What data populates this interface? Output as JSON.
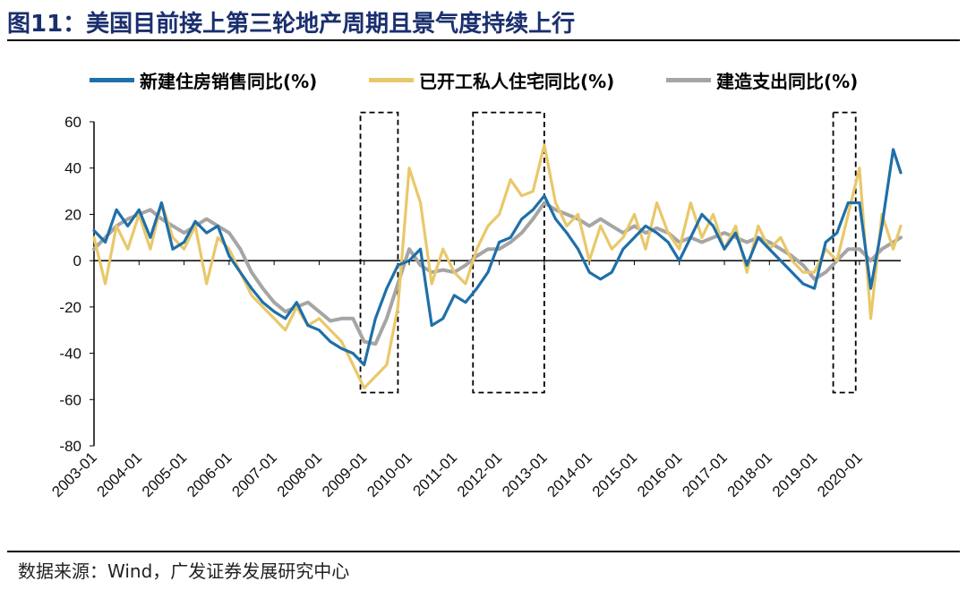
{
  "header": {
    "title": "图11：美国目前接上第三轮地产周期且景气度持续上行"
  },
  "footer": {
    "source": "数据来源：Wind，广发证券发展研究中心"
  },
  "colors": {
    "title": "#1a2f6e",
    "series1": "#1f6fa9",
    "series2": "#e9c86a",
    "series3": "#a5a5a5"
  },
  "chart_data": {
    "type": "line",
    "title": "",
    "xlabel": "",
    "ylabel": "",
    "ylim": [
      -80,
      60
    ],
    "yticks": [
      60,
      40,
      20,
      0,
      -20,
      -40,
      -60,
      -80
    ],
    "xticks": [
      "2003-01",
      "2004-01",
      "2005-01",
      "2006-01",
      "2007-01",
      "2008-01",
      "2009-01",
      "2010-01",
      "2011-01",
      "2012-01",
      "2013-01",
      "2014-01",
      "2015-01",
      "2016-01",
      "2017-01",
      "2018-01",
      "2019-01",
      "2020-01"
    ],
    "x_range": [
      "2003-01",
      "2020-12"
    ],
    "grid": false,
    "legend_position": "top",
    "highlight_boxes": [
      {
        "from": "2008-12",
        "to": "2009-10",
        "ymin": -57,
        "ymax": 64
      },
      {
        "from": "2011-06",
        "to": "2013-01",
        "ymin": -57,
        "ymax": 64
      },
      {
        "from": "2019-06",
        "to": "2019-12",
        "ymin": -57,
        "ymax": 64
      }
    ],
    "series": [
      {
        "name": "新建住房销售同比(%)",
        "color": "#1f6fa9",
        "points": [
          [
            "2003-01",
            13
          ],
          [
            "2003-04",
            8
          ],
          [
            "2003-07",
            22
          ],
          [
            "2003-10",
            15
          ],
          [
            "2004-01",
            22
          ],
          [
            "2004-04",
            10
          ],
          [
            "2004-07",
            25
          ],
          [
            "2004-10",
            5
          ],
          [
            "2005-01",
            8
          ],
          [
            "2005-04",
            17
          ],
          [
            "2005-07",
            12
          ],
          [
            "2005-10",
            15
          ],
          [
            "2006-01",
            2
          ],
          [
            "2006-04",
            -5
          ],
          [
            "2006-07",
            -12
          ],
          [
            "2006-10",
            -18
          ],
          [
            "2007-01",
            -22
          ],
          [
            "2007-04",
            -25
          ],
          [
            "2007-07",
            -18
          ],
          [
            "2007-10",
            -28
          ],
          [
            "2008-01",
            -30
          ],
          [
            "2008-04",
            -35
          ],
          [
            "2008-07",
            -38
          ],
          [
            "2008-10",
            -40
          ],
          [
            "2009-01",
            -45
          ],
          [
            "2009-04",
            -25
          ],
          [
            "2009-07",
            -12
          ],
          [
            "2009-10",
            -2
          ],
          [
            "2010-01",
            0
          ],
          [
            "2010-04",
            5
          ],
          [
            "2010-07",
            -28
          ],
          [
            "2010-10",
            -25
          ],
          [
            "2011-01",
            -15
          ],
          [
            "2011-04",
            -18
          ],
          [
            "2011-07",
            -12
          ],
          [
            "2011-10",
            -5
          ],
          [
            "2012-01",
            8
          ],
          [
            "2012-04",
            10
          ],
          [
            "2012-07",
            18
          ],
          [
            "2012-10",
            22
          ],
          [
            "2013-01",
            28
          ],
          [
            "2013-04",
            18
          ],
          [
            "2013-07",
            12
          ],
          [
            "2013-10",
            5
          ],
          [
            "2014-01",
            -5
          ],
          [
            "2014-04",
            -8
          ],
          [
            "2014-07",
            -5
          ],
          [
            "2014-10",
            5
          ],
          [
            "2015-01",
            10
          ],
          [
            "2015-04",
            15
          ],
          [
            "2015-07",
            12
          ],
          [
            "2015-10",
            8
          ],
          [
            "2016-01",
            0
          ],
          [
            "2016-04",
            10
          ],
          [
            "2016-07",
            20
          ],
          [
            "2016-10",
            15
          ],
          [
            "2017-01",
            5
          ],
          [
            "2017-04",
            12
          ],
          [
            "2017-07",
            -2
          ],
          [
            "2017-10",
            10
          ],
          [
            "2018-01",
            5
          ],
          [
            "2018-04",
            0
          ],
          [
            "2018-07",
            -5
          ],
          [
            "2018-10",
            -10
          ],
          [
            "2019-01",
            -12
          ],
          [
            "2019-04",
            8
          ],
          [
            "2019-07",
            12
          ],
          [
            "2019-10",
            25
          ],
          [
            "2020-01",
            25
          ],
          [
            "2020-04",
            -12
          ],
          [
            "2020-07",
            15
          ],
          [
            "2020-10",
            48
          ],
          [
            "2020-12",
            38
          ]
        ]
      },
      {
        "name": "已开工私人住宅同比(%)",
        "color": "#e9c86a",
        "points": [
          [
            "2003-01",
            10
          ],
          [
            "2003-04",
            -10
          ],
          [
            "2003-07",
            15
          ],
          [
            "2003-10",
            5
          ],
          [
            "2004-01",
            20
          ],
          [
            "2004-04",
            5
          ],
          [
            "2004-07",
            25
          ],
          [
            "2004-10",
            10
          ],
          [
            "2005-01",
            5
          ],
          [
            "2005-04",
            15
          ],
          [
            "2005-07",
            -10
          ],
          [
            "2005-10",
            10
          ],
          [
            "2006-01",
            5
          ],
          [
            "2006-04",
            -5
          ],
          [
            "2006-07",
            -15
          ],
          [
            "2006-10",
            -20
          ],
          [
            "2007-01",
            -25
          ],
          [
            "2007-04",
            -30
          ],
          [
            "2007-07",
            -20
          ],
          [
            "2007-10",
            -28
          ],
          [
            "2008-01",
            -25
          ],
          [
            "2008-04",
            -30
          ],
          [
            "2008-07",
            -35
          ],
          [
            "2008-10",
            -45
          ],
          [
            "2009-01",
            -55
          ],
          [
            "2009-04",
            -50
          ],
          [
            "2009-07",
            -45
          ],
          [
            "2009-10",
            -20
          ],
          [
            "2010-01",
            40
          ],
          [
            "2010-04",
            25
          ],
          [
            "2010-07",
            -10
          ],
          [
            "2010-10",
            5
          ],
          [
            "2011-01",
            -5
          ],
          [
            "2011-04",
            -10
          ],
          [
            "2011-07",
            5
          ],
          [
            "2011-10",
            15
          ],
          [
            "2012-01",
            20
          ],
          [
            "2012-04",
            35
          ],
          [
            "2012-07",
            28
          ],
          [
            "2012-10",
            30
          ],
          [
            "2013-01",
            50
          ],
          [
            "2013-04",
            25
          ],
          [
            "2013-07",
            15
          ],
          [
            "2013-10",
            20
          ],
          [
            "2014-01",
            0
          ],
          [
            "2014-04",
            15
          ],
          [
            "2014-07",
            5
          ],
          [
            "2014-10",
            10
          ],
          [
            "2015-01",
            20
          ],
          [
            "2015-04",
            5
          ],
          [
            "2015-07",
            25
          ],
          [
            "2015-10",
            12
          ],
          [
            "2016-01",
            5
          ],
          [
            "2016-04",
            25
          ],
          [
            "2016-07",
            10
          ],
          [
            "2016-10",
            20
          ],
          [
            "2017-01",
            5
          ],
          [
            "2017-04",
            15
          ],
          [
            "2017-07",
            -5
          ],
          [
            "2017-10",
            15
          ],
          [
            "2018-01",
            5
          ],
          [
            "2018-04",
            10
          ],
          [
            "2018-07",
            0
          ],
          [
            "2018-10",
            -5
          ],
          [
            "2019-01",
            -5
          ],
          [
            "2019-04",
            5
          ],
          [
            "2019-07",
            0
          ],
          [
            "2019-10",
            20
          ],
          [
            "2020-01",
            40
          ],
          [
            "2020-04",
            -25
          ],
          [
            "2020-07",
            20
          ],
          [
            "2020-10",
            5
          ],
          [
            "2020-12",
            15
          ]
        ]
      },
      {
        "name": "建造支出同比(%)",
        "color": "#a5a5a5",
        "points": [
          [
            "2003-01",
            5
          ],
          [
            "2003-04",
            10
          ],
          [
            "2003-07",
            15
          ],
          [
            "2003-10",
            18
          ],
          [
            "2004-01",
            20
          ],
          [
            "2004-04",
            22
          ],
          [
            "2004-07",
            18
          ],
          [
            "2004-10",
            15
          ],
          [
            "2005-01",
            12
          ],
          [
            "2005-04",
            15
          ],
          [
            "2005-07",
            18
          ],
          [
            "2005-10",
            15
          ],
          [
            "2006-01",
            12
          ],
          [
            "2006-04",
            5
          ],
          [
            "2006-07",
            -5
          ],
          [
            "2006-10",
            -12
          ],
          [
            "2007-01",
            -18
          ],
          [
            "2007-04",
            -22
          ],
          [
            "2007-07",
            -20
          ],
          [
            "2007-10",
            -18
          ],
          [
            "2008-01",
            -22
          ],
          [
            "2008-04",
            -26
          ],
          [
            "2008-07",
            -25
          ],
          [
            "2008-10",
            -25
          ],
          [
            "2009-01",
            -35
          ],
          [
            "2009-04",
            -36
          ],
          [
            "2009-07",
            -25
          ],
          [
            "2009-10",
            -10
          ],
          [
            "2010-01",
            5
          ],
          [
            "2010-04",
            -2
          ],
          [
            "2010-07",
            -5
          ],
          [
            "2010-10",
            -4
          ],
          [
            "2011-01",
            -5
          ],
          [
            "2011-04",
            -2
          ],
          [
            "2011-07",
            2
          ],
          [
            "2011-10",
            5
          ],
          [
            "2012-01",
            5
          ],
          [
            "2012-04",
            8
          ],
          [
            "2012-07",
            12
          ],
          [
            "2012-10",
            18
          ],
          [
            "2013-01",
            25
          ],
          [
            "2013-04",
            22
          ],
          [
            "2013-07",
            20
          ],
          [
            "2013-10",
            18
          ],
          [
            "2014-01",
            15
          ],
          [
            "2014-04",
            18
          ],
          [
            "2014-07",
            15
          ],
          [
            "2014-10",
            12
          ],
          [
            "2015-01",
            15
          ],
          [
            "2015-04",
            12
          ],
          [
            "2015-07",
            14
          ],
          [
            "2015-10",
            12
          ],
          [
            "2016-01",
            8
          ],
          [
            "2016-04",
            10
          ],
          [
            "2016-07",
            8
          ],
          [
            "2016-10",
            10
          ],
          [
            "2017-01",
            12
          ],
          [
            "2017-04",
            10
          ],
          [
            "2017-07",
            8
          ],
          [
            "2017-10",
            10
          ],
          [
            "2018-01",
            8
          ],
          [
            "2018-04",
            5
          ],
          [
            "2018-07",
            2
          ],
          [
            "2018-10",
            -2
          ],
          [
            "2019-01",
            -8
          ],
          [
            "2019-04",
            -5
          ],
          [
            "2019-07",
            0
          ],
          [
            "2019-10",
            5
          ],
          [
            "2020-01",
            5
          ],
          [
            "2020-04",
            0
          ],
          [
            "2020-07",
            5
          ],
          [
            "2020-10",
            8
          ],
          [
            "2020-12",
            10
          ]
        ]
      }
    ]
  }
}
